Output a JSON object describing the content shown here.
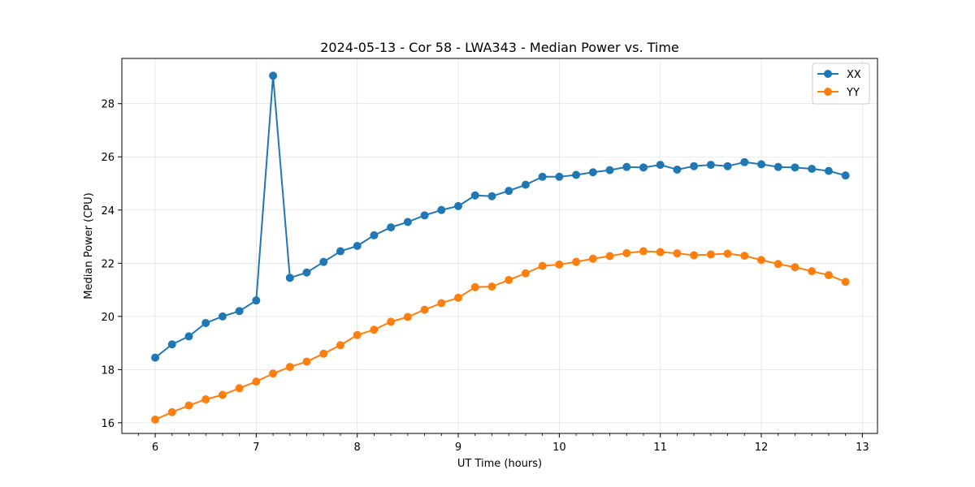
{
  "chart_data": {
    "type": "line",
    "title": "2024-05-13 - Cor 58 - LWA343 - Median Power vs. Time",
    "xlabel": "UT Time (hours)",
    "ylabel": "Median Power (CPU)",
    "xlim": [
      5.67,
      13.15
    ],
    "ylim": [
      15.6,
      29.7
    ],
    "xticks": [
      6,
      7,
      8,
      9,
      10,
      11,
      12,
      13
    ],
    "yticks": [
      16,
      18,
      20,
      22,
      24,
      26,
      28
    ],
    "grid": true,
    "legend_position": "upper-right",
    "x": [
      6.0,
      6.1667,
      6.3333,
      6.5,
      6.6667,
      6.8333,
      7.0,
      7.1667,
      7.3333,
      7.5,
      7.6667,
      7.8333,
      8.0,
      8.1667,
      8.3333,
      8.5,
      8.6667,
      8.8333,
      9.0,
      9.1667,
      9.3333,
      9.5,
      9.6667,
      9.8333,
      10.0,
      10.1667,
      10.3333,
      10.5,
      10.6667,
      10.8333,
      11.0,
      11.1667,
      11.3333,
      11.5,
      11.6667,
      11.8333,
      12.0,
      12.1667,
      12.3333,
      12.5,
      12.6667,
      12.8333
    ],
    "series": [
      {
        "name": "XX",
        "color": "#1f77b4",
        "values": [
          18.45,
          18.95,
          19.25,
          19.75,
          20.0,
          20.2,
          20.6,
          29.05,
          21.45,
          21.65,
          22.05,
          22.45,
          22.65,
          23.05,
          23.35,
          23.55,
          23.8,
          24.0,
          24.15,
          24.55,
          24.52,
          24.72,
          24.95,
          25.25,
          25.25,
          25.32,
          25.42,
          25.5,
          25.62,
          25.6,
          25.7,
          25.52,
          25.65,
          25.7,
          25.65,
          25.8,
          25.72,
          25.62,
          25.6,
          25.55,
          25.47,
          25.3
        ]
      },
      {
        "name": "YY",
        "color": "#ff7f0e",
        "values": [
          16.12,
          16.4,
          16.65,
          16.88,
          17.05,
          17.3,
          17.55,
          17.85,
          18.1,
          18.3,
          18.6,
          18.92,
          19.3,
          19.5,
          19.8,
          19.98,
          20.25,
          20.5,
          20.7,
          21.1,
          21.12,
          21.37,
          21.62,
          21.9,
          21.95,
          22.05,
          22.17,
          22.27,
          22.38,
          22.45,
          22.42,
          22.37,
          22.3,
          22.33,
          22.36,
          22.28,
          22.12,
          21.97,
          21.85,
          21.7,
          21.55,
          21.3
        ]
      }
    ]
  }
}
